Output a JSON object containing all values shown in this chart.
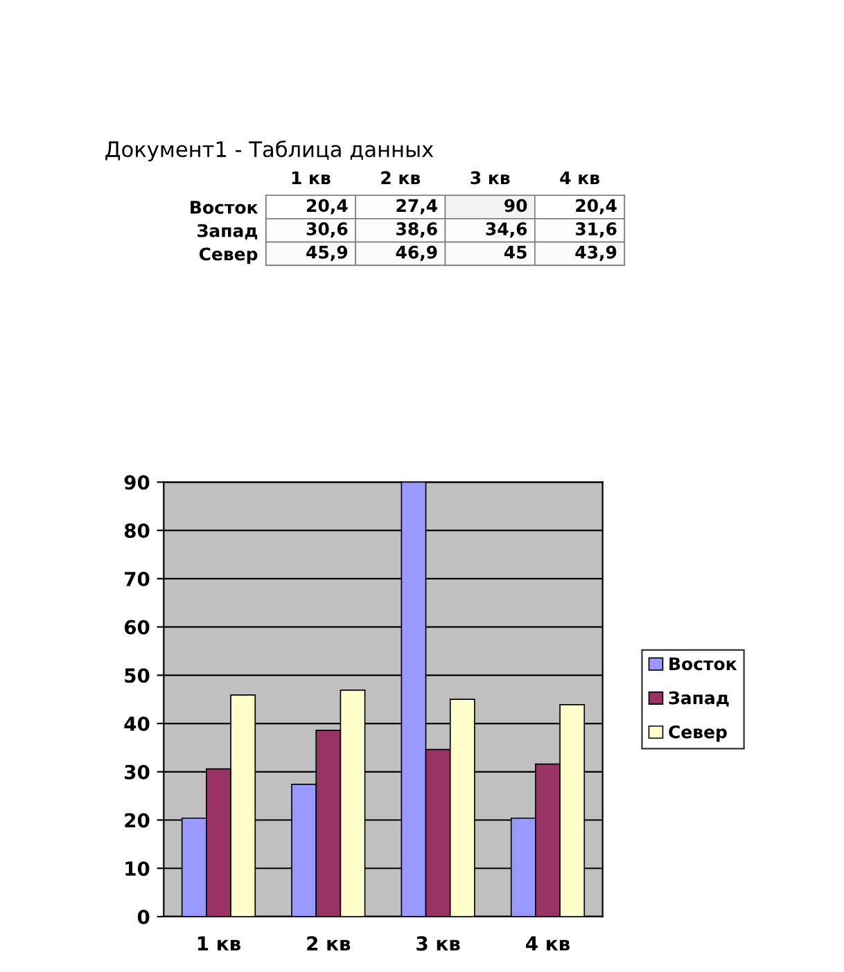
{
  "chart_data": [
    {
      "type": "heatmap",
      "title": "Документ1 - Таблица данных",
      "categories": [
        "1 кв",
        "2 кв",
        "3 кв",
        "4 кв"
      ],
      "y_categories": [
        "Восток",
        "Запад",
        "Север"
      ],
      "cells": [
        [
          20.4,
          27.4,
          90,
          20.4
        ],
        [
          30.6,
          38.6,
          34.6,
          31.6
        ],
        [
          45.9,
          46.9,
          45,
          43.9
        ]
      ],
      "cell_labels": [
        [
          "20,4",
          "27,4",
          "90",
          "20,4"
        ],
        [
          "30,6",
          "38,6",
          "34,6",
          "31,6"
        ],
        [
          "45,9",
          "46,9",
          "45",
          "43,9"
        ]
      ]
    },
    {
      "type": "bar",
      "categories": [
        "1 кв",
        "2 кв",
        "3 кв",
        "4 кв"
      ],
      "series": [
        {
          "name": "Восток",
          "color": "#9999ff",
          "values": [
            20.4,
            27.4,
            90,
            20.4
          ]
        },
        {
          "name": "Запад",
          "color": "#993366",
          "values": [
            30.6,
            38.6,
            34.6,
            31.6
          ]
        },
        {
          "name": "Север",
          "color": "#ffffcc",
          "values": [
            45.9,
            46.9,
            45,
            43.9
          ]
        }
      ],
      "ylim": [
        0,
        90
      ],
      "yticks": [
        0,
        10,
        20,
        30,
        40,
        50,
        60,
        70,
        80,
        90
      ],
      "grid": "y",
      "legend": "right"
    }
  ]
}
